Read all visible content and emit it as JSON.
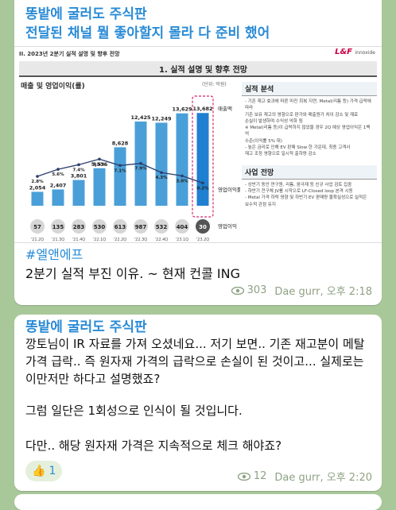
{
  "message1": {
    "channel": "똥밭에 굴러도 주식판",
    "headline": "전달된 채널 뭘 좋아할지 몰라 다 준비 했어",
    "hashtag": "#엘앤에프",
    "body": "2분기 실적 부진 이유. ~ 현재 컨콜 ING",
    "views": "303",
    "author_time": "Dae gurr, 오후 2:18",
    "slide": {
      "header": "II. 2023년 2분기 실적 설명 및 향후 전망",
      "logo": "L&F",
      "logo_sub": "innoxide",
      "title": "1. 실적 설명 및 향후 전망",
      "chart_title": "매출 및 영업이익(률)",
      "unit": "(단위: 억원)",
      "revenue_label": "매출액",
      "margin_label": "영업이익률",
      "op_label": "영업이익",
      "perf_title": "실적 분석",
      "perf_lines": [
        "- 기존 재고 효과에 따른 마진 회복 지연, Metal(리튬 등) 가격 급락에 따라",
        "  기존 보유 재고의 영향으로 판가와 매출원가 차이 감소 및 재료",
        "  손실이 발생하며 수익성 악화 됨",
        "※ Metal(리튬 등)이 급락하지 않았을 경우 2Q 예상 영업이익은 1백억",
        "  수준(이익률 5% 대)",
        "- 높은 금리로 인해 EV 판매 Slow 한 가운데, 최종 고객사",
        "  재고 조정 영향으로 일시적 출하량 감소"
      ],
      "biz_title": "사업 전망",
      "biz_lines": [
        "- 상반기 동안 연구원, 리튬, 음극재 등 신규 사업 검토 집중",
        "- 하반기 전구체 JV를 시작으로 LF-Closed loop 본격 시동",
        "- Metal 가격 하락 영향 및 하반기 EV 판매량 불확실성으로 실적은",
        "  보수적 관점 유지"
      ]
    }
  },
  "chart_data": {
    "type": "bar",
    "title": "매출 및 영업이익(률)",
    "categories": [
      "'21.2Q",
      "'21.3Q",
      "'21.4Q",
      "'22.1Q",
      "'22.2Q",
      "'22.3Q",
      "'22.4Q",
      "'23.1Q",
      "'23.2Q"
    ],
    "series": [
      {
        "name": "매출액",
        "values": [
          2054,
          2407,
          3801,
          5536,
          8628,
          12425,
          12249,
          13629,
          13682
        ]
      },
      {
        "name": "영업이익률",
        "values": [
          2.8,
          5.6,
          7.4,
          9.6,
          7.1,
          7.9,
          4.3,
          3.0,
          0.2
        ]
      },
      {
        "name": "영업이익",
        "values": [
          57,
          135,
          283,
          530,
          613,
          987,
          532,
          404,
          30
        ]
      }
    ],
    "value_labels": [
      "2,054",
      "2,407",
      "3,801",
      "5,536",
      "8,628",
      "12,425",
      "12,249",
      "13,629",
      "13,682"
    ],
    "margin_labels": [
      "2.8%",
      "5.6%",
      "7.4%",
      "9.6%",
      "7.1%",
      "7.9%",
      "4.3%",
      "3.0%",
      "0.2%"
    ],
    "ylim": [
      0,
      15000
    ]
  },
  "message2": {
    "channel": "똥밭에 굴러도 주식판",
    "paragraph1": "깡토님이 IR 자료를 가져 오셨네요... 저기 보면.. 기존 재고분이 메탈가격 급락.. 즉 원자재 가격의 급락으로 손실이 된 것이고... 실제로는 이만저만 하다고 설명했죠?",
    "paragraph2": "그럼 일단은 1회성으로 인식이 될 것입니다.",
    "paragraph3": "다만.. 해당 원자재 가격은 지속적으로 체크 해야죠?",
    "reaction_emoji": "👍",
    "reaction_count": "1",
    "views": "12",
    "author_time": "Dae gurr, 오후 2:20"
  },
  "colors": {
    "accent": "#2a8bd6",
    "background": "#a9c89a",
    "bar": "#4a9fd8",
    "bar_highlight": "#1f7fd0",
    "line": "#2c3e6b"
  }
}
